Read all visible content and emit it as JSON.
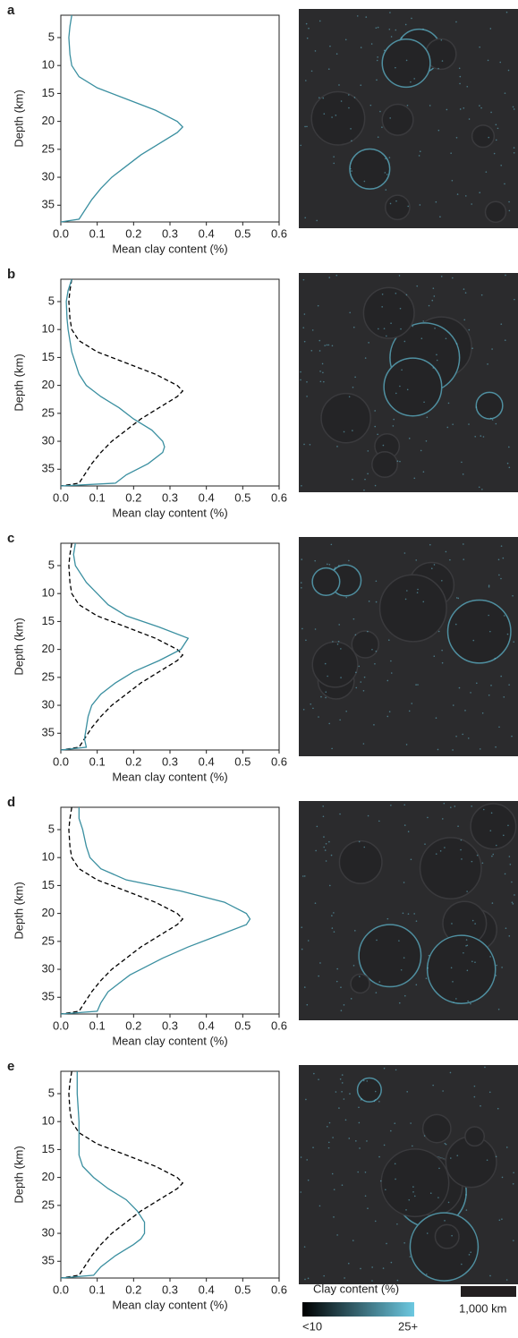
{
  "chart_data": [
    {
      "type": "line",
      "panel": "a",
      "xlabel": "Mean clay content (%)",
      "ylabel": "Depth (km)",
      "xlim": [
        0,
        0.6
      ],
      "xticks": [
        {
          "value": 0,
          "label": "0.0"
        },
        0.1,
        0.2,
        0.3,
        0.4,
        0.5,
        0.6
      ],
      "ylim": [
        1,
        38
      ],
      "yticks": [
        5,
        10,
        15,
        20,
        25,
        30,
        35
      ],
      "y_inverted": true,
      "y": [
        1,
        3,
        5,
        8,
        10,
        12,
        14,
        16,
        18,
        20,
        21,
        22,
        24,
        26,
        28,
        30,
        31,
        32,
        34,
        36,
        37.5,
        38
      ],
      "series": [
        {
          "color": "#3a8fa0",
          "dashed": false,
          "values": [
            0.03,
            0.025,
            0.022,
            0.025,
            0.03,
            0.05,
            0.1,
            0.18,
            0.26,
            0.32,
            0.335,
            0.32,
            0.27,
            0.22,
            0.18,
            0.14,
            0.125,
            0.11,
            0.085,
            0.065,
            0.05,
            0
          ]
        }
      ]
    },
    {
      "type": "line",
      "panel": "b",
      "xlabel": "Mean clay content (%)",
      "ylabel": "Depth (km)",
      "xlim": [
        0,
        0.6
      ],
      "xticks": [
        {
          "value": 0,
          "label": "0.0"
        },
        0.1,
        0.2,
        0.3,
        0.4,
        0.5,
        0.6
      ],
      "ylim": [
        1,
        38
      ],
      "yticks": [
        5,
        10,
        15,
        20,
        25,
        30,
        35
      ],
      "y_inverted": true,
      "y": [
        1,
        3,
        5,
        8,
        10,
        12,
        14,
        16,
        18,
        20,
        21,
        22,
        24,
        26,
        28,
        30,
        31,
        32,
        34,
        36,
        37.5,
        38
      ],
      "series": [
        {
          "color": "#000000",
          "dashed": true,
          "values": [
            0.03,
            0.025,
            0.022,
            0.025,
            0.03,
            0.05,
            0.1,
            0.18,
            0.26,
            0.32,
            0.335,
            0.32,
            0.27,
            0.22,
            0.18,
            0.14,
            0.125,
            0.11,
            0.085,
            0.065,
            0.05,
            0
          ]
        },
        {
          "color": "#3a8fa0",
          "dashed": false,
          "values": [
            0.03,
            0.02,
            0.015,
            0.017,
            0.02,
            0.025,
            0.03,
            0.04,
            0.05,
            0.07,
            0.09,
            0.11,
            0.16,
            0.2,
            0.25,
            0.28,
            0.285,
            0.28,
            0.24,
            0.18,
            0.15,
            0
          ]
        }
      ]
    },
    {
      "type": "line",
      "panel": "c",
      "xlabel": "Mean clay content (%)",
      "ylabel": "Depth (km)",
      "xlim": [
        0,
        0.6
      ],
      "xticks": [
        {
          "value": 0,
          "label": "0.0"
        },
        0.1,
        0.2,
        0.3,
        0.4,
        0.5,
        0.6
      ],
      "ylim": [
        1,
        38
      ],
      "yticks": [
        5,
        10,
        15,
        20,
        25,
        30,
        35
      ],
      "y_inverted": true,
      "y": [
        1,
        3,
        5,
        8,
        10,
        12,
        14,
        16,
        18,
        20,
        21,
        22,
        24,
        26,
        28,
        30,
        31,
        32,
        34,
        36,
        37.5,
        38
      ],
      "series": [
        {
          "color": "#000000",
          "dashed": true,
          "values": [
            0.03,
            0.025,
            0.022,
            0.025,
            0.03,
            0.05,
            0.1,
            0.18,
            0.26,
            0.32,
            0.335,
            0.32,
            0.27,
            0.22,
            0.18,
            0.14,
            0.125,
            0.11,
            0.085,
            0.065,
            0.05,
            0
          ]
        },
        {
          "color": "#3a8fa0",
          "dashed": false,
          "values": [
            0.04,
            0.035,
            0.04,
            0.07,
            0.1,
            0.13,
            0.18,
            0.27,
            0.35,
            0.33,
            0.3,
            0.27,
            0.2,
            0.15,
            0.11,
            0.085,
            0.08,
            0.075,
            0.07,
            0.065,
            0.07,
            0
          ]
        }
      ]
    },
    {
      "type": "line",
      "panel": "d",
      "xlabel": "Mean clay content (%)",
      "ylabel": "Depth (km)",
      "xlim": [
        0,
        0.6
      ],
      "xticks": [
        {
          "value": 0,
          "label": "0.0"
        },
        0.1,
        0.2,
        0.3,
        0.4,
        0.5,
        0.6
      ],
      "ylim": [
        1,
        38
      ],
      "yticks": [
        5,
        10,
        15,
        20,
        25,
        30,
        35
      ],
      "y_inverted": true,
      "y": [
        1,
        3,
        5,
        8,
        10,
        12,
        14,
        16,
        18,
        20,
        21,
        22,
        24,
        26,
        28,
        30,
        31,
        32,
        34,
        36,
        37.5,
        38
      ],
      "series": [
        {
          "color": "#000000",
          "dashed": true,
          "values": [
            0.03,
            0.025,
            0.022,
            0.025,
            0.03,
            0.05,
            0.1,
            0.18,
            0.26,
            0.32,
            0.335,
            0.32,
            0.27,
            0.22,
            0.18,
            0.14,
            0.125,
            0.11,
            0.085,
            0.065,
            0.05,
            0
          ]
        },
        {
          "color": "#3a8fa0",
          "dashed": false,
          "values": [
            0.05,
            0.05,
            0.06,
            0.07,
            0.08,
            0.11,
            0.18,
            0.33,
            0.45,
            0.51,
            0.52,
            0.51,
            0.43,
            0.35,
            0.28,
            0.22,
            0.19,
            0.17,
            0.13,
            0.11,
            0.1,
            0
          ]
        }
      ]
    },
    {
      "type": "line",
      "panel": "e",
      "xlabel": "Mean clay content (%)",
      "ylabel": "Depth (km)",
      "xlim": [
        0,
        0.6
      ],
      "xticks": [
        {
          "value": 0,
          "label": "0.0"
        },
        0.1,
        0.2,
        0.3,
        0.4,
        0.5,
        0.6
      ],
      "ylim": [
        1,
        38
      ],
      "yticks": [
        5,
        10,
        15,
        20,
        25,
        30,
        35
      ],
      "y_inverted": true,
      "y": [
        1,
        3,
        5,
        8,
        10,
        12,
        14,
        16,
        18,
        20,
        21,
        22,
        24,
        26,
        28,
        30,
        31,
        32,
        34,
        36,
        37.5,
        38
      ],
      "series": [
        {
          "color": "#000000",
          "dashed": true,
          "values": [
            0.03,
            0.025,
            0.022,
            0.025,
            0.03,
            0.05,
            0.1,
            0.18,
            0.26,
            0.32,
            0.335,
            0.32,
            0.27,
            0.22,
            0.18,
            0.14,
            0.125,
            0.11,
            0.085,
            0.065,
            0.05,
            0
          ]
        },
        {
          "color": "#3a8fa0",
          "dashed": false,
          "values": [
            0.045,
            0.045,
            0.045,
            0.048,
            0.05,
            0.05,
            0.05,
            0.05,
            0.06,
            0.09,
            0.11,
            0.13,
            0.18,
            0.21,
            0.23,
            0.23,
            0.22,
            0.2,
            0.15,
            0.11,
            0.09,
            0
          ]
        }
      ]
    }
  ],
  "colorbar": {
    "title": "Clay content (%)",
    "min_label": "<10",
    "max_label": "25+"
  },
  "scale_bar": {
    "label": "1,000 km"
  }
}
